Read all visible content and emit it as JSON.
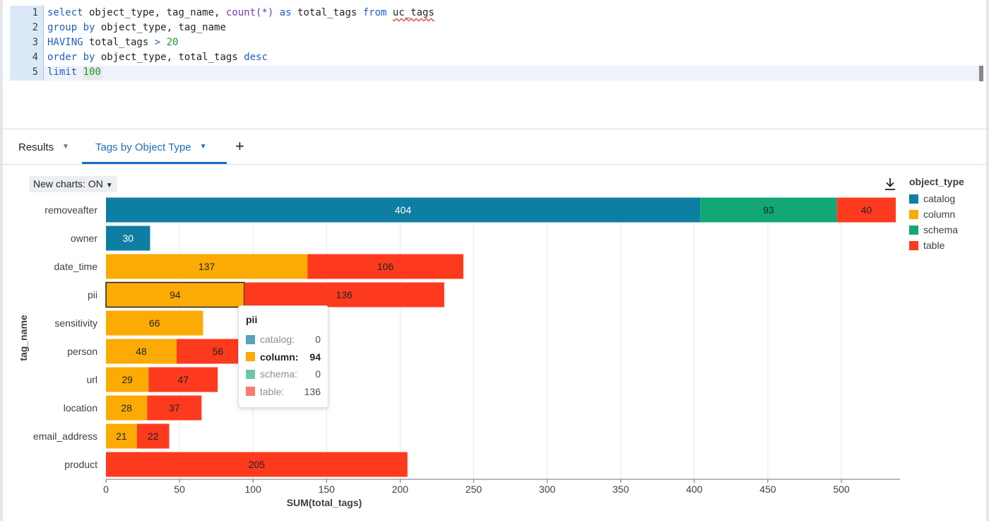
{
  "editor": {
    "lines": [
      {
        "n": "1"
      },
      {
        "n": "2"
      },
      {
        "n": "3"
      },
      {
        "n": "4"
      },
      {
        "n": "5"
      }
    ],
    "tokens": {
      "l1_select": "select",
      "l1_cols": " object_type, tag_name, ",
      "l1_count": "count(*)",
      "l1_as": " as ",
      "l1_alias": "total_tags ",
      "l1_from": "from",
      "l1_sp": " ",
      "l1_table": "uc_tags",
      "l2_group": "group by",
      "l2_cols": " object_type, tag_name",
      "l3_having": "HAVING",
      "l3_expr": " total_tags ",
      "l3_gt": ">",
      "l3_sp": " ",
      "l3_num": "20",
      "l4_order": "order by",
      "l4_cols": " object_type, total_tags ",
      "l4_desc": "desc",
      "l5_limit": "limit",
      "l5_sp": " ",
      "l5_num": "100"
    }
  },
  "tabs": {
    "results": "Results",
    "chart": "Tags by Object Type",
    "add": "+"
  },
  "toolbar": {
    "new_charts": "New charts: ON"
  },
  "colors": {
    "catalog": "#0e7ea3",
    "column": "#fbab03",
    "schema": "#11a776",
    "table": "#fd3a1e"
  },
  "icons": {
    "download": "download-icon",
    "chevron": "chevron-down-icon"
  },
  "chart_data": {
    "type": "bar",
    "orientation": "horizontal",
    "stacked": true,
    "categories": [
      "removeafter",
      "owner",
      "date_time",
      "pii",
      "sensitivity",
      "person",
      "url",
      "location",
      "email_address",
      "product"
    ],
    "series": [
      {
        "name": "catalog",
        "values": [
          404,
          30,
          0,
          0,
          0,
          0,
          0,
          0,
          0,
          0
        ]
      },
      {
        "name": "column",
        "values": [
          0,
          0,
          137,
          94,
          66,
          48,
          29,
          28,
          21,
          0
        ]
      },
      {
        "name": "schema",
        "values": [
          93,
          0,
          0,
          0,
          0,
          0,
          0,
          0,
          0,
          0
        ]
      },
      {
        "name": "table",
        "values": [
          40,
          0,
          106,
          136,
          0,
          56,
          47,
          37,
          22,
          205
        ]
      }
    ],
    "xlabel": "SUM(total_tags)",
    "ylabel": "tag_name",
    "xlim": [
      0,
      540
    ],
    "xticks": [
      0,
      50,
      100,
      150,
      200,
      250,
      300,
      350,
      400,
      450,
      500
    ],
    "grid": true,
    "legend": {
      "title": "object_type",
      "placement": "right",
      "items": [
        "catalog",
        "column",
        "schema",
        "table"
      ]
    }
  },
  "tooltip": {
    "title": "pii",
    "rows": [
      {
        "label": "catalog:",
        "value": "0"
      },
      {
        "label": "column:",
        "value": "94"
      },
      {
        "label": "schema:",
        "value": "0"
      },
      {
        "label": "table:",
        "value": "136"
      }
    ]
  }
}
